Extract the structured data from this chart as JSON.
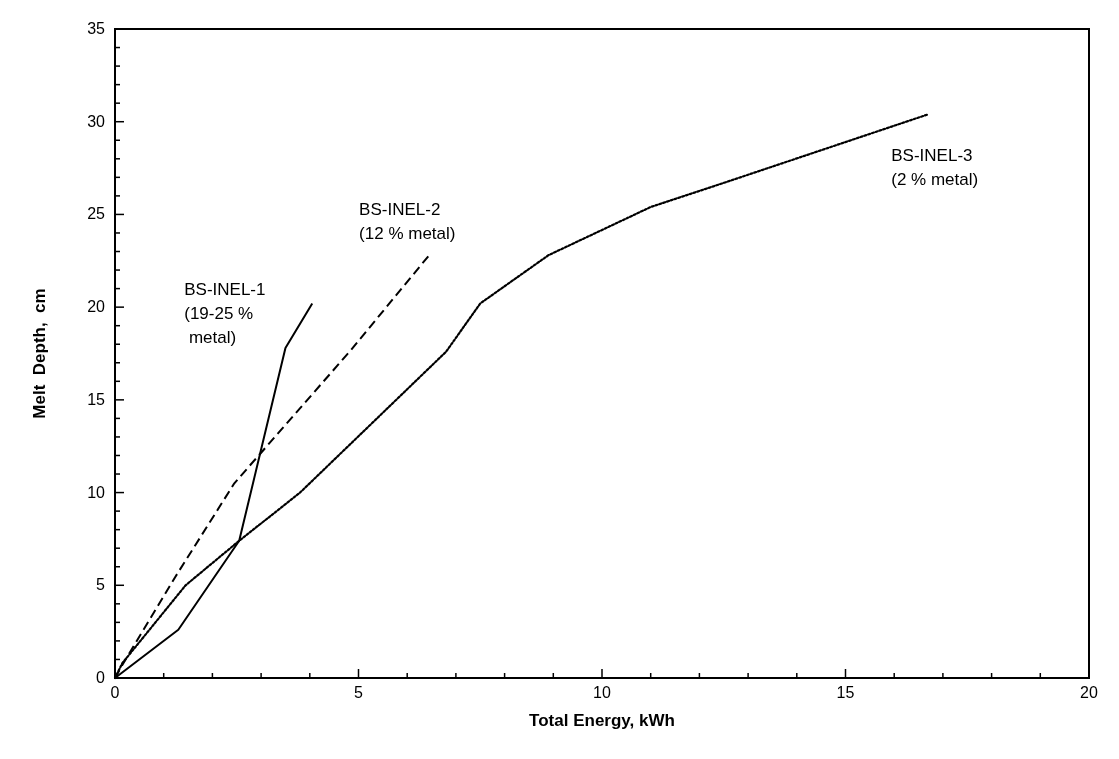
{
  "chart_data": {
    "type": "line",
    "xlabel": "Total Energy, kWh",
    "ylabel": "Melt  Depth,  cm",
    "xlim": [
      0,
      20
    ],
    "ylim": [
      0,
      35
    ],
    "xticks": [
      0,
      {
        "value": 1,
        "label": null
      },
      {
        "value": 2,
        "label": null
      },
      {
        "value": 3,
        "label": null
      },
      {
        "value": 4,
        "label": null
      },
      5,
      {
        "value": 6,
        "label": null
      },
      {
        "value": 7,
        "label": null
      },
      {
        "value": 8,
        "label": null
      },
      {
        "value": 9,
        "label": null
      },
      10,
      {
        "value": 11,
        "label": null
      },
      {
        "value": 12,
        "label": null
      },
      {
        "value": 13,
        "label": null
      },
      {
        "value": 14,
        "label": null
      },
      15,
      {
        "value": 16,
        "label": null
      },
      {
        "value": 17,
        "label": null
      },
      {
        "value": 18,
        "label": null
      },
      {
        "value": 19,
        "label": null
      },
      20
    ],
    "yticks": [
      0,
      {
        "value": 1,
        "label": null
      },
      {
        "value": 2,
        "label": null
      },
      {
        "value": 3,
        "label": null
      },
      {
        "value": 4,
        "label": null
      },
      5,
      {
        "value": 6,
        "label": null
      },
      {
        "value": 7,
        "label": null
      },
      {
        "value": 8,
        "label": null
      },
      {
        "value": 9,
        "label": null
      },
      10,
      {
        "value": 11,
        "label": null
      },
      {
        "value": 12,
        "label": null
      },
      {
        "value": 13,
        "label": null
      },
      {
        "value": 14,
        "label": null
      },
      15,
      {
        "value": 16,
        "label": null
      },
      {
        "value": 17,
        "label": null
      },
      {
        "value": 18,
        "label": null
      },
      {
        "value": 19,
        "label": null
      },
      20,
      {
        "value": 21,
        "label": null
      },
      {
        "value": 22,
        "label": null
      },
      {
        "value": 23,
        "label": null
      },
      {
        "value": 24,
        "label": null
      },
      25,
      {
        "value": 26,
        "label": null
      },
      {
        "value": 27,
        "label": null
      },
      {
        "value": 28,
        "label": null
      },
      {
        "value": 29,
        "label": null
      },
      30,
      {
        "value": 31,
        "label": null
      },
      {
        "value": 32,
        "label": null
      },
      {
        "value": 33,
        "label": null
      },
      {
        "value": 34,
        "label": null
      },
      35
    ],
    "grid": false,
    "marker": "none",
    "series": [
      {
        "name": "BS-INEL-1",
        "color": "#000000",
        "line_style": "solid",
        "x": [
          0,
          1.3,
          2.55,
          3.5,
          4.05
        ],
        "values": [
          0,
          2.6,
          7.4,
          17.8,
          20.2
        ]
      },
      {
        "name": "BS-INEL-2",
        "color": "#000000",
        "line_style": "dashed",
        "x": [
          0,
          0.15,
          1.25,
          2.45,
          4.85,
          6.45
        ],
        "values": [
          0,
          0.7,
          5.5,
          10.5,
          17.7,
          22.8
        ]
      },
      {
        "name": "BS-INEL-3",
        "color": "#000000",
        "line_style": "dotted",
        "x": [
          0,
          0.15,
          1.45,
          2.55,
          3.8,
          6.8,
          7.5,
          8.9,
          11,
          12.5,
          16.7
        ],
        "values": [
          0,
          0.8,
          5,
          7.4,
          10,
          17.6,
          20.2,
          22.8,
          25.4,
          26.7,
          30.4
        ]
      }
    ],
    "annotations": [
      "(19-25 %\n metal)",
      "(12 % metal)",
      "(2 % metal)"
    ]
  }
}
